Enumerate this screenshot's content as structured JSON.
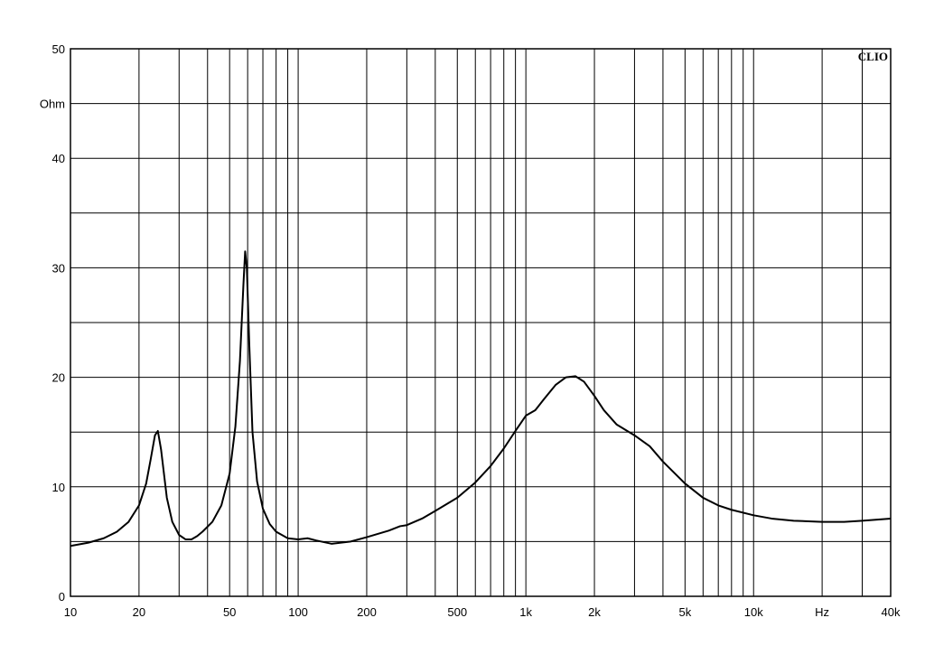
{
  "brand": "CLIO",
  "colors": {
    "background": "#ffffff",
    "grid": "#000000",
    "curve": "#000000"
  },
  "chart_data": {
    "type": "line",
    "title": "",
    "xscale": "log",
    "xlim": [
      10,
      40000
    ],
    "ylim": [
      0,
      50
    ],
    "grid": true,
    "xlabel_unit": "Hz",
    "ylabel_unit": "Ohm",
    "x_minor_gridlines": [
      10,
      20,
      30,
      40,
      50,
      60,
      70,
      80,
      90,
      100,
      200,
      300,
      400,
      500,
      600,
      700,
      800,
      900,
      1000,
      2000,
      3000,
      4000,
      5000,
      6000,
      7000,
      8000,
      9000,
      10000,
      20000,
      30000,
      40000
    ],
    "y_gridlines": [
      0,
      5,
      10,
      15,
      20,
      25,
      30,
      35,
      40,
      45,
      50
    ],
    "x_tick_labels": [
      {
        "value": 10,
        "label": "10"
      },
      {
        "value": 20,
        "label": "20"
      },
      {
        "value": 50,
        "label": "50"
      },
      {
        "value": 100,
        "label": "100"
      },
      {
        "value": 200,
        "label": "200"
      },
      {
        "value": 500,
        "label": "500"
      },
      {
        "value": 1000,
        "label": "1k"
      },
      {
        "value": 2000,
        "label": "2k"
      },
      {
        "value": 5000,
        "label": "5k"
      },
      {
        "value": 10000,
        "label": "10k"
      },
      {
        "value": 20000,
        "label": "Hz"
      },
      {
        "value": 40000,
        "label": "40k"
      }
    ],
    "y_tick_labels": [
      {
        "value": 0,
        "label": "0"
      },
      {
        "value": 10,
        "label": "10"
      },
      {
        "value": 20,
        "label": "20"
      },
      {
        "value": 30,
        "label": "30"
      },
      {
        "value": 40,
        "label": "40"
      },
      {
        "value": 45,
        "label": "Ohm"
      },
      {
        "value": 50,
        "label": "50"
      }
    ],
    "series": [
      {
        "color": "#000000",
        "points": [
          [
            10,
            4.6
          ],
          [
            12,
            4.9
          ],
          [
            14,
            5.3
          ],
          [
            16,
            5.9
          ],
          [
            18,
            6.8
          ],
          [
            20,
            8.3
          ],
          [
            21.5,
            10.3
          ],
          [
            22.5,
            12.5
          ],
          [
            23.5,
            14.7
          ],
          [
            24.2,
            15.1
          ],
          [
            25,
            13.4
          ],
          [
            26.5,
            9.0
          ],
          [
            28,
            6.8
          ],
          [
            30,
            5.6
          ],
          [
            32,
            5.2
          ],
          [
            34,
            5.2
          ],
          [
            36,
            5.5
          ],
          [
            38,
            5.9
          ],
          [
            42,
            6.8
          ],
          [
            46,
            8.3
          ],
          [
            50,
            11.2
          ],
          [
            53,
            15.5
          ],
          [
            55.5,
            21.5
          ],
          [
            57.5,
            28.5
          ],
          [
            58.5,
            31.5
          ],
          [
            59.5,
            30.0
          ],
          [
            61,
            23.0
          ],
          [
            63,
            15.0
          ],
          [
            66,
            10.5
          ],
          [
            70,
            8.0
          ],
          [
            75,
            6.6
          ],
          [
            80,
            5.9
          ],
          [
            90,
            5.3
          ],
          [
            100,
            5.2
          ],
          [
            110,
            5.3
          ],
          [
            120,
            5.1
          ],
          [
            140,
            4.8
          ],
          [
            170,
            5.0
          ],
          [
            200,
            5.4
          ],
          [
            250,
            6.0
          ],
          [
            280,
            6.4
          ],
          [
            300,
            6.5
          ],
          [
            350,
            7.1
          ],
          [
            400,
            7.8
          ],
          [
            500,
            9.0
          ],
          [
            600,
            10.4
          ],
          [
            700,
            11.9
          ],
          [
            800,
            13.5
          ],
          [
            900,
            15.1
          ],
          [
            1000,
            16.5
          ],
          [
            1100,
            17.0
          ],
          [
            1200,
            18.0
          ],
          [
            1350,
            19.3
          ],
          [
            1500,
            20.0
          ],
          [
            1650,
            20.1
          ],
          [
            1800,
            19.6
          ],
          [
            2000,
            18.3
          ],
          [
            2200,
            17.0
          ],
          [
            2500,
            15.7
          ],
          [
            3000,
            14.7
          ],
          [
            3500,
            13.7
          ],
          [
            4000,
            12.3
          ],
          [
            5000,
            10.3
          ],
          [
            6000,
            9.0
          ],
          [
            7000,
            8.3
          ],
          [
            8000,
            7.9
          ],
          [
            10000,
            7.4
          ],
          [
            12000,
            7.1
          ],
          [
            15000,
            6.9
          ],
          [
            20000,
            6.8
          ],
          [
            25000,
            6.8
          ],
          [
            30000,
            6.9
          ],
          [
            40000,
            7.1
          ]
        ]
      }
    ]
  }
}
